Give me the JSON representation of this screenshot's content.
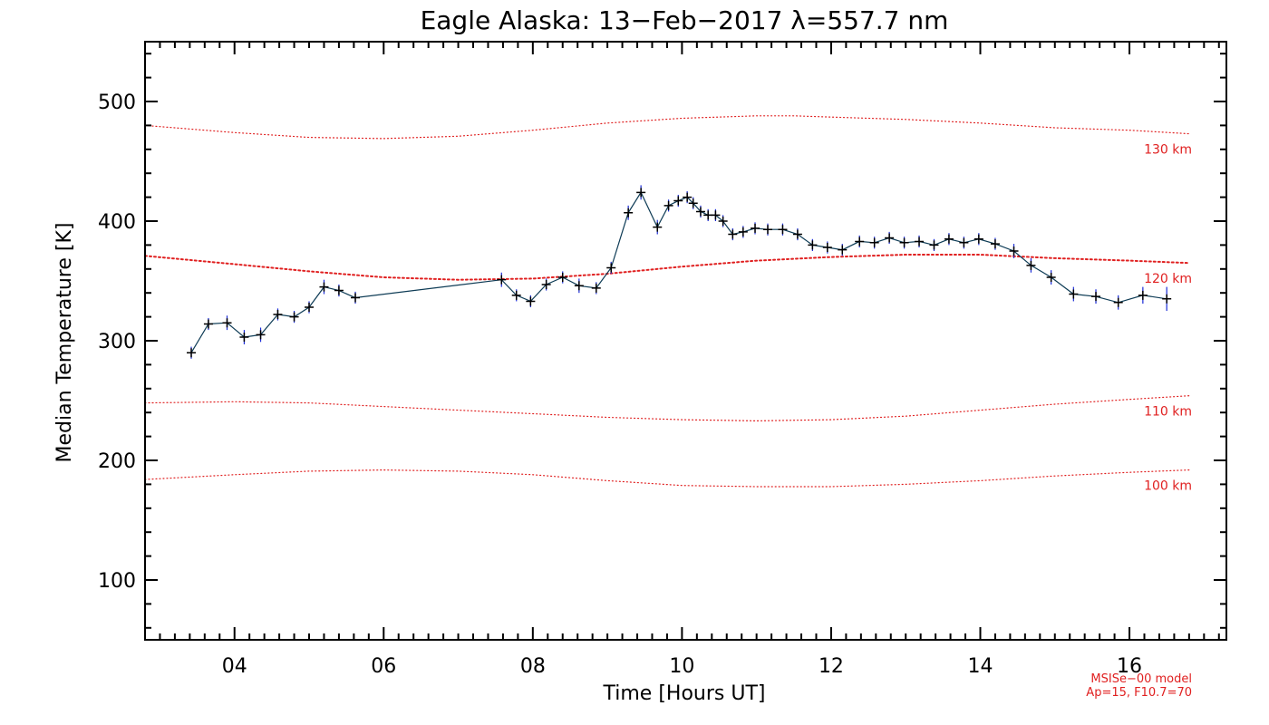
{
  "chart_data": {
    "type": "line",
    "title": "Eagle Alaska: 13−Feb−2017 λ=557.7 nm",
    "xlabel": "Time [Hours UT]",
    "ylabel": "Median Temperature [K]",
    "xlim": [
      2.8,
      17.3
    ],
    "ylim": [
      50,
      550
    ],
    "x_ticks": [
      4,
      6,
      8,
      10,
      12,
      14,
      16
    ],
    "x_tick_labels": [
      "04",
      "06",
      "08",
      "10",
      "12",
      "14",
      "16"
    ],
    "y_ticks": [
      100,
      200,
      300,
      400,
      500
    ],
    "y_tick_labels": [
      "100",
      "200",
      "300",
      "400",
      "500"
    ],
    "grid": false,
    "series": [
      {
        "color": "#0d3b55",
        "marker": "+",
        "errorbar_color": "#1a2bd6",
        "x": [
          3.42,
          3.65,
          3.9,
          4.13,
          4.35,
          4.58,
          4.8,
          5.0,
          5.2,
          5.4,
          5.62,
          7.58,
          7.78,
          7.97,
          8.18,
          8.4,
          8.62,
          8.85,
          9.05,
          9.28,
          9.45,
          9.67,
          9.82,
          9.95,
          10.07,
          10.15,
          10.25,
          10.35,
          10.45,
          10.55,
          10.68,
          10.82,
          10.98,
          11.15,
          11.35,
          11.55,
          11.75,
          11.95,
          12.15,
          12.38,
          12.58,
          12.78,
          12.98,
          13.18,
          13.38,
          13.58,
          13.78,
          13.98,
          14.2,
          14.45,
          14.68,
          14.95,
          15.25,
          15.55,
          15.85,
          16.18,
          16.5
        ],
        "values": [
          290,
          314,
          315,
          303,
          305,
          322,
          320,
          328,
          345,
          342,
          336,
          351,
          338,
          333,
          347,
          353,
          346,
          344,
          361,
          407,
          424,
          395,
          413,
          417,
          420,
          415,
          408,
          405,
          405,
          400,
          389,
          391,
          394,
          393,
          393,
          389,
          380,
          378,
          376,
          383,
          382,
          386,
          382,
          383,
          380,
          385,
          382,
          385,
          381,
          375,
          363,
          353,
          339,
          337,
          332,
          338,
          335
        ],
        "errors": [
          5,
          5,
          6,
          6,
          6,
          5,
          5,
          5,
          6,
          5,
          5,
          6,
          5,
          5,
          5,
          5,
          6,
          5,
          5,
          6,
          6,
          6,
          5,
          5,
          5,
          5,
          5,
          5,
          5,
          5,
          5,
          5,
          5,
          5,
          5,
          5,
          5,
          5,
          5,
          5,
          5,
          5,
          5,
          5,
          5,
          5,
          5,
          5,
          5,
          6,
          6,
          6,
          6,
          6,
          6,
          7,
          10
        ]
      }
    ],
    "model_curves": [
      {
        "label": "130 km",
        "color": "#e02020",
        "x": [
          2.8,
          4,
          5,
          6,
          7,
          8,
          9,
          10,
          11,
          11.5,
          12,
          13,
          14,
          15,
          16,
          16.8
        ],
        "values": [
          480,
          474,
          470,
          469,
          471,
          476,
          482,
          486,
          488,
          488,
          487,
          485,
          482,
          478,
          476,
          473
        ]
      },
      {
        "label": "120 km",
        "color": "#e02020",
        "x": [
          2.8,
          4,
          5,
          6,
          7,
          8,
          9,
          10,
          11,
          12,
          13,
          14,
          15,
          16,
          16.8
        ],
        "values": [
          371,
          364,
          358,
          353,
          351,
          352,
          356,
          362,
          367,
          370,
          372,
          372,
          369,
          367,
          365
        ]
      },
      {
        "label": "110 km",
        "color": "#e02020",
        "x": [
          2.8,
          4,
          5,
          6,
          7,
          8,
          9,
          10,
          11,
          12,
          13,
          14,
          15,
          16,
          16.8
        ],
        "values": [
          248,
          249,
          248,
          245,
          242,
          239,
          236,
          234,
          233,
          234,
          237,
          242,
          247,
          251,
          254
        ]
      },
      {
        "label": "100 km",
        "color": "#e02020",
        "x": [
          2.8,
          4,
          5,
          6,
          7,
          8,
          9,
          10,
          11,
          12,
          13,
          14,
          15,
          16,
          16.8
        ],
        "values": [
          184,
          188,
          191,
          192,
          191,
          188,
          183,
          179,
          178,
          178,
          180,
          183,
          187,
          190,
          192
        ]
      }
    ],
    "annotations": [
      "MSISe−00 model",
      "Ap=15, F10.7=70"
    ]
  }
}
